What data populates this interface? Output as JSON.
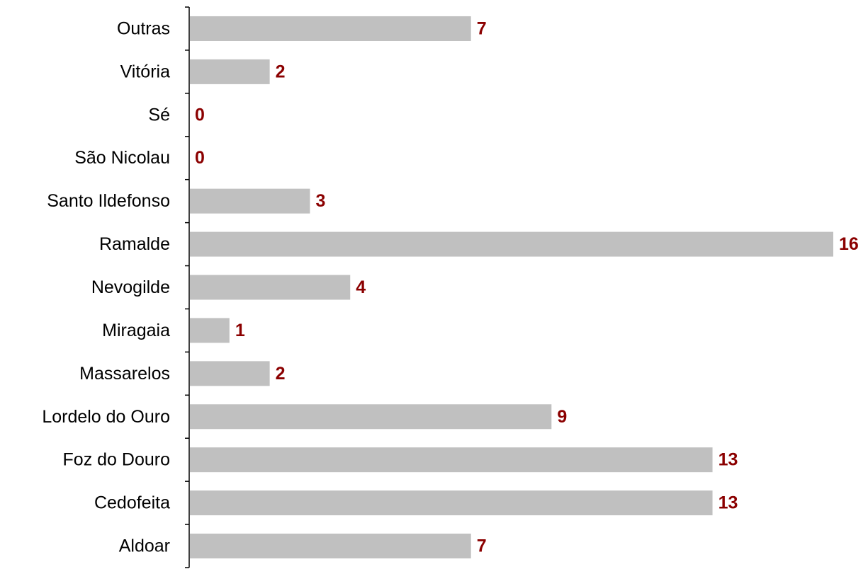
{
  "chart_data": {
    "type": "bar",
    "orientation": "horizontal",
    "categories": [
      "Outras",
      "Vitória",
      "Sé",
      "São Nicolau",
      "Santo Ildefonso",
      "Ramalde",
      "Nevogilde",
      "Miragaia",
      "Massarelos",
      "Lordelo do Ouro",
      "Foz do Douro",
      "Cedofeita",
      "Aldoar"
    ],
    "values": [
      7,
      2,
      0,
      0,
      3,
      16,
      4,
      1,
      2,
      9,
      13,
      13,
      7
    ],
    "value_labels": [
      "7",
      "2",
      "0",
      "0",
      "3",
      "16",
      "4",
      "1",
      "2",
      "9",
      "13",
      "13",
      "7"
    ],
    "xlim": [
      0,
      16
    ],
    "grid": false,
    "legend": "none",
    "colors": {
      "bar": "#c0c0c0",
      "value_label": "#8b0000",
      "axis": "#000000",
      "category_label": "#000000"
    }
  }
}
